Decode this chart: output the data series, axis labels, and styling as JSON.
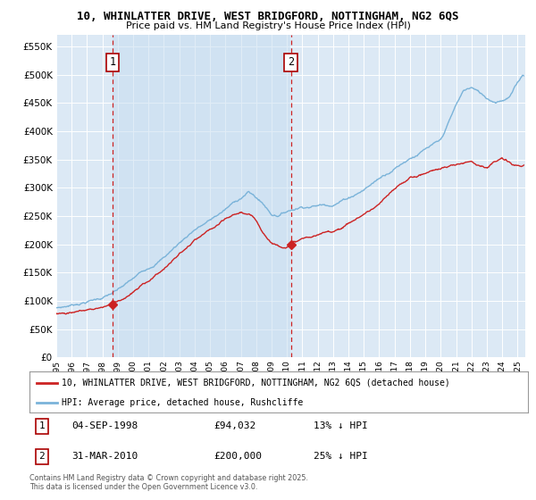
{
  "title_line1": "10, WHINLATTER DRIVE, WEST BRIDGFORD, NOTTINGHAM, NG2 6QS",
  "title_line2": "Price paid vs. HM Land Registry's House Price Index (HPI)",
  "xlim_start": 1995.0,
  "xlim_end": 2025.5,
  "ylim_min": 0,
  "ylim_max": 570000,
  "plot_bg_color": "#dce9f5",
  "grid_color": "#ffffff",
  "hpi_color": "#7ab3d9",
  "price_color": "#cc2222",
  "dashed_line_color": "#cc2222",
  "legend_label_price": "10, WHINLATTER DRIVE, WEST BRIDGFORD, NOTTINGHAM, NG2 6QS (detached house)",
  "legend_label_hpi": "HPI: Average price, detached house, Rushcliffe",
  "sale1_date": 1998.67,
  "sale1_price": 94032,
  "sale1_label": "1",
  "sale2_date": 2010.25,
  "sale2_price": 200000,
  "sale2_label": "2",
  "footer": "Contains HM Land Registry data © Crown copyright and database right 2025.\nThis data is licensed under the Open Government Licence v3.0.",
  "yticks": [
    0,
    50000,
    100000,
    150000,
    200000,
    250000,
    300000,
    350000,
    400000,
    450000,
    500000,
    550000
  ],
  "tick_years": [
    1995,
    1996,
    1997,
    1998,
    1999,
    2000,
    2001,
    2002,
    2003,
    2004,
    2005,
    2006,
    2007,
    2008,
    2009,
    2010,
    2011,
    2012,
    2013,
    2014,
    2015,
    2016,
    2017,
    2018,
    2019,
    2020,
    2021,
    2022,
    2023,
    2024,
    2025
  ],
  "hpi_anchors_x": [
    1995.0,
    1995.5,
    1996.0,
    1997.0,
    1998.0,
    1999.0,
    2000.0,
    2001.0,
    2002.0,
    2003.0,
    2004.0,
    2005.0,
    2006.0,
    2007.0,
    2007.5,
    2008.0,
    2008.5,
    2009.0,
    2009.5,
    2010.0,
    2010.5,
    2011.0,
    2012.0,
    2013.0,
    2014.0,
    2015.0,
    2016.0,
    2017.0,
    2018.0,
    2019.0,
    2020.0,
    2020.5,
    2021.0,
    2021.5,
    2022.0,
    2022.5,
    2023.0,
    2023.5,
    2024.0,
    2024.5,
    2025.3
  ],
  "hpi_anchors_v": [
    88000,
    90000,
    93000,
    100000,
    107000,
    118000,
    135000,
    155000,
    175000,
    200000,
    225000,
    240000,
    258000,
    278000,
    288000,
    278000,
    265000,
    248000,
    248000,
    255000,
    260000,
    265000,
    268000,
    272000,
    285000,
    300000,
    320000,
    340000,
    360000,
    375000,
    385000,
    415000,
    445000,
    470000,
    475000,
    465000,
    455000,
    450000,
    455000,
    462000,
    498000
  ],
  "price_anchors_x": [
    1995.0,
    1995.5,
    1996.0,
    1997.0,
    1998.0,
    1999.0,
    2000.0,
    2001.0,
    2002.0,
    2003.0,
    2004.0,
    2005.0,
    2006.0,
    2007.0,
    2007.5,
    2008.0,
    2008.5,
    2009.0,
    2009.5,
    2010.0,
    2010.25,
    2010.5,
    2011.0,
    2012.0,
    2013.0,
    2014.0,
    2015.0,
    2016.0,
    2017.0,
    2018.0,
    2019.0,
    2020.0,
    2021.0,
    2022.0,
    2022.5,
    2023.0,
    2023.5,
    2024.0,
    2024.5,
    2025.3
  ],
  "price_anchors_v": [
    78000,
    79000,
    81000,
    86000,
    92000,
    105000,
    120000,
    140000,
    163000,
    188000,
    210000,
    225000,
    240000,
    252000,
    248000,
    235000,
    215000,
    200000,
    195000,
    198000,
    200000,
    205000,
    210000,
    215000,
    222000,
    238000,
    255000,
    272000,
    295000,
    315000,
    325000,
    335000,
    340000,
    350000,
    345000,
    342000,
    350000,
    355000,
    345000,
    340000
  ]
}
